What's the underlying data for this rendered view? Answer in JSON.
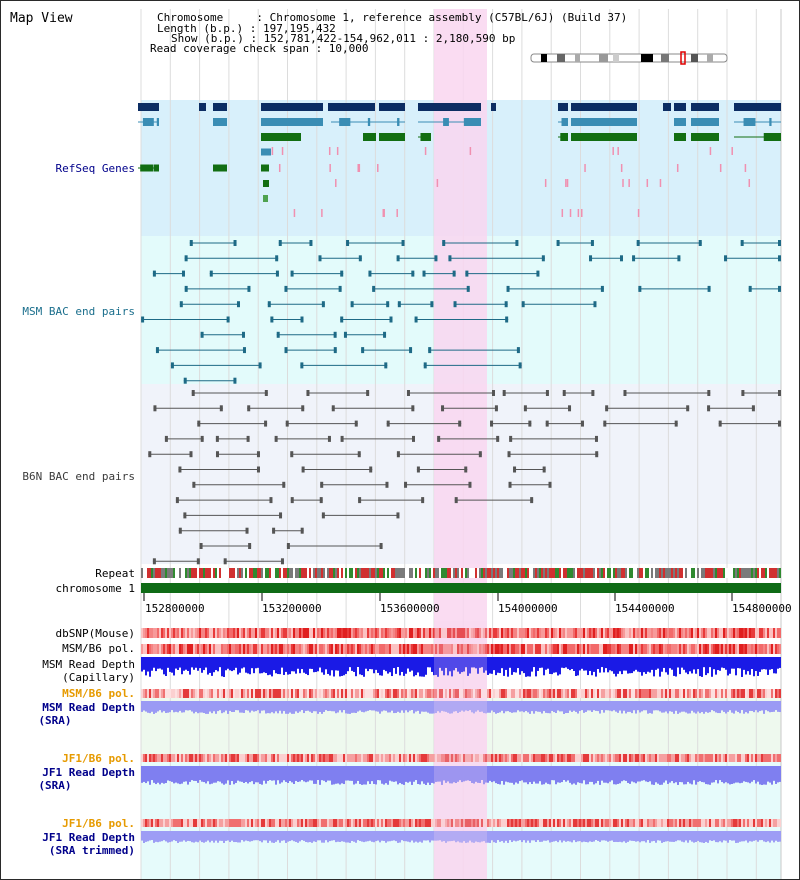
{
  "panel": {
    "title": "Map View"
  },
  "info": {
    "lines": [
      "Chromosome     : Chromosome 1, reference assembly (C57BL/6J) (Build 37)",
      "Length (b.p.) : 197,195,432",
      "Show (b.p.) : 152,781,422-154,962,011 : 2,180,590 bp",
      "Read coverage check span : 10,000"
    ]
  },
  "tracks": {
    "refseq": "RefSeq Genes",
    "msm_bac": "MSM BAC end pairs",
    "b6n_bac": "B6N BAC end pairs",
    "repeat": "Repeat",
    "chromosome": "chromosome 1",
    "dbsnp": "dbSNP(Mouse)",
    "msm_b6_pol_1": "MSM/B6 pol.",
    "msm_read_depth_cap_1": "MSM Read Depth",
    "msm_read_depth_cap_2": "(Capillary)",
    "msm_b6_pol_2": "MSM/B6 pol.",
    "msm_read_depth_sra_1": "MSM Read Depth",
    "msm_read_depth_sra_2": "(SRA)",
    "jf1_b6_pol_1": "JF1/B6 pol.",
    "jf1_read_depth_sra_1": "JF1 Read Depth",
    "jf1_read_depth_sra_2": "(SRA)",
    "jf1_b6_pol_2": "JF1/B6 pol.",
    "jf1_read_depth_trim_1": "JF1 Read Depth",
    "jf1_read_depth_trim_2": "(SRA trimmed)"
  },
  "axis": {
    "ticks": [
      "152800000",
      "153200000",
      "153600000",
      "154000000",
      "154400000",
      "154800000"
    ]
  },
  "colors": {
    "refseq_bg": "#d8f0fb",
    "msm_bg": "#e3fbfb",
    "b6n_bg": "#f0f3fa",
    "highlight": "#f9d6f0",
    "gene_navy": "#0c2d63",
    "gene_teal": "#3a8db4",
    "gene_green": "#126e12",
    "msm_line": "#1e6a86",
    "b6n_line": "#555555",
    "chrom_bar": "#0f6b16",
    "depth_blue": "#1a1ae6",
    "depth_light": "#7f7ff0",
    "label_blue": "#00008b",
    "label_orange": "#e69a00",
    "label_teal": "#1a6e8c"
  }
}
